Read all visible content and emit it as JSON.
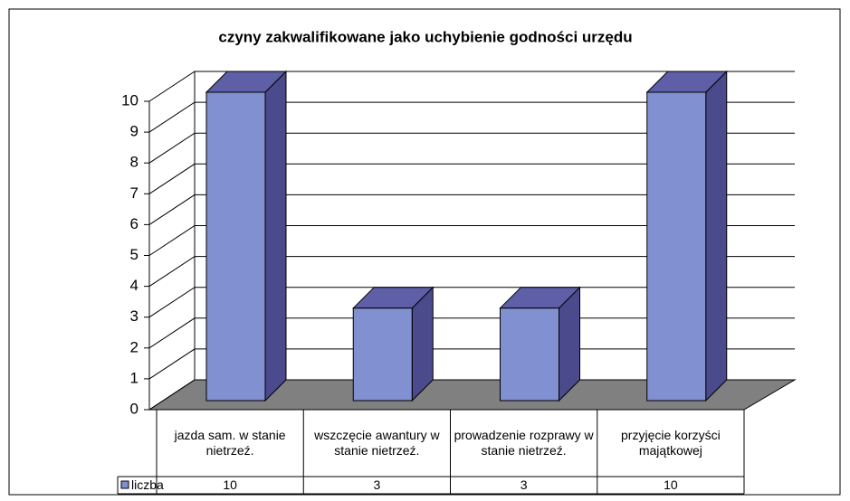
{
  "chart_data": {
    "type": "bar3d",
    "title": "czyny zakwalifikowane jako uchybienie godności urzędu",
    "categories": [
      "jazda sam. w stanie nietrzeź.",
      "wszczęcie awantury  w stanie nietrzeź.",
      "prowadzenie rozprawy w stanie nietrzeź.",
      "przyjęcie korzyści majątkowej"
    ],
    "series": [
      {
        "name": "liczba",
        "color": "#8090d0",
        "values": [
          10,
          3,
          3,
          10
        ]
      }
    ],
    "ylim": [
      0,
      10
    ],
    "yticks": [
      0,
      1,
      2,
      3,
      4,
      5,
      6,
      7,
      8,
      9,
      10
    ],
    "grid": true,
    "legend": "bottom-left"
  }
}
